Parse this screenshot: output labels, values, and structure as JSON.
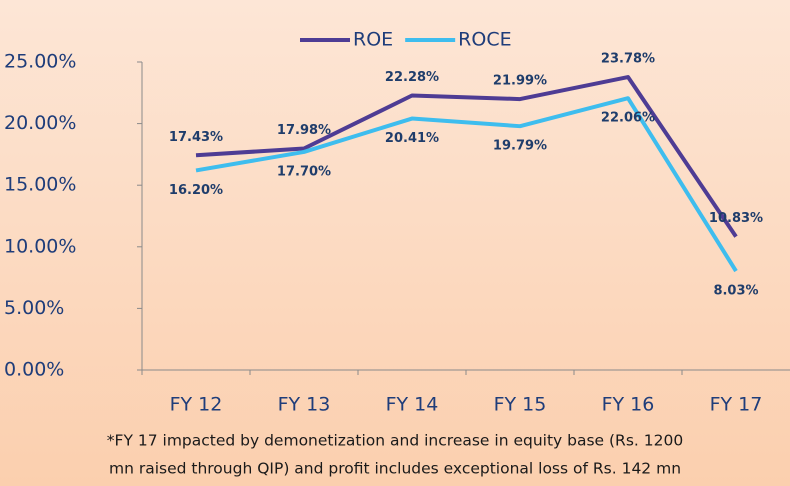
{
  "chart_data": {
    "type": "line",
    "categories": [
      "FY 12",
      "FY 13",
      "FY 14",
      "FY 15",
      "FY 16",
      "FY 17"
    ],
    "series": [
      {
        "name": "ROE",
        "color": "#4e3c94",
        "values": [
          17.43,
          17.98,
          22.28,
          21.99,
          23.78,
          10.83
        ],
        "value_labels": [
          "17.43%",
          "17.98%",
          "22.28%",
          "21.99%",
          "23.78%",
          "10.83%"
        ]
      },
      {
        "name": "ROCE",
        "color": "#3ebdee",
        "values": [
          16.2,
          17.7,
          20.41,
          19.79,
          22.06,
          8.03
        ],
        "value_labels": [
          "16.20%",
          "17.70%",
          "20.41%",
          "19.79%",
          "22.06%",
          "8.03%"
        ]
      }
    ],
    "ylim": [
      0,
      25
    ],
    "yticks": [
      {
        "value": 0,
        "label": "0.00%"
      },
      {
        "value": 5,
        "label": "5.00%"
      },
      {
        "value": 10,
        "label": "10.00%"
      },
      {
        "value": 15,
        "label": "15.00%"
      },
      {
        "value": 20,
        "label": "20.00%"
      },
      {
        "value": 25,
        "label": "25.00%"
      }
    ],
    "legend": "top",
    "footnote": [
      "*FY 17 impacted by demonetization and increase in equity base (Rs. 1200",
      "mn raised through QIP) and profit includes exceptional loss of Rs. 142 mn"
    ]
  }
}
